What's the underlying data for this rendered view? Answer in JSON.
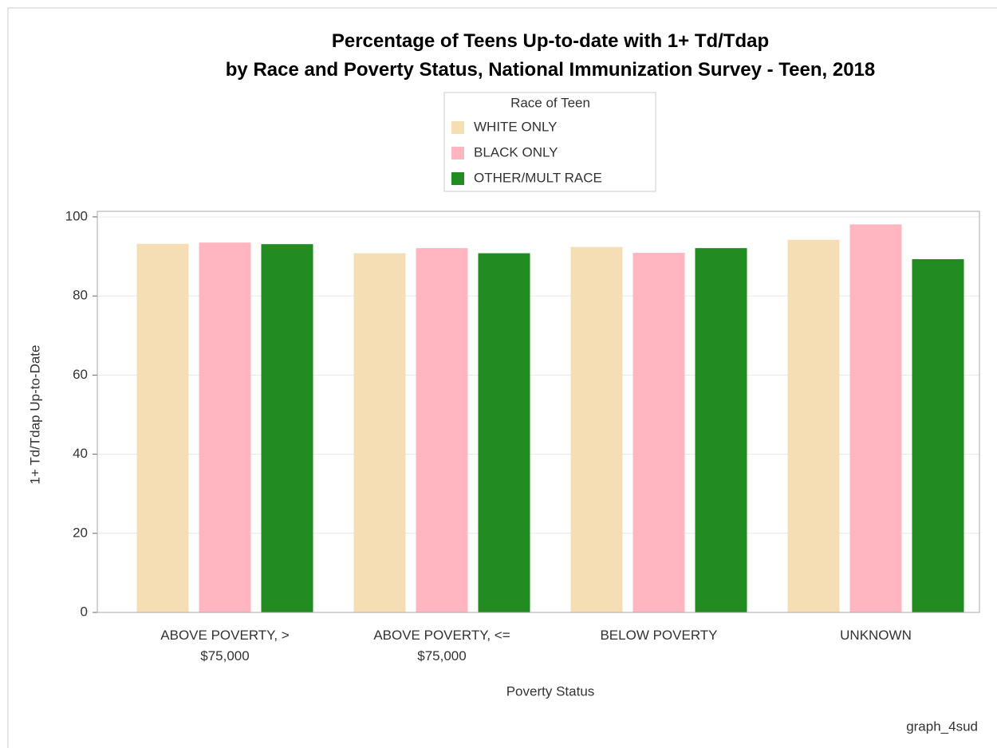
{
  "chart_data": {
    "type": "bar",
    "title": "Percentage of Teens Up-to-date with 1+ Td/Tdap\nby Race and Poverty Status, National Immunization Survey - Teen, 2018",
    "legend_title": "Race of Teen",
    "x_label": "Poverty Status",
    "y_label": "1+ Td/Tdap Up-to-Date",
    "footnote": "graph_4sud",
    "categories": [
      "ABOVE POVERTY, >\n$75,000",
      "ABOVE POVERTY, <=\n$75,000",
      "BELOW POVERTY",
      "UNKNOWN"
    ],
    "series": [
      {
        "name": "WHITE ONLY",
        "color": "#f5deb3",
        "values": [
          93.2,
          90.8,
          92.4,
          94.2
        ]
      },
      {
        "name": "BLACK ONLY",
        "color": "#ffb6c1",
        "values": [
          93.5,
          92.1,
          90.9,
          98.1
        ]
      },
      {
        "name": "OTHER/MULT RACE",
        "color": "#228b22",
        "values": [
          93.1,
          90.8,
          92.1,
          89.3
        ]
      }
    ],
    "ylim": [
      0,
      101.4
    ],
    "yticks": [
      0,
      20,
      40,
      60,
      80,
      100
    ],
    "grid": true
  }
}
